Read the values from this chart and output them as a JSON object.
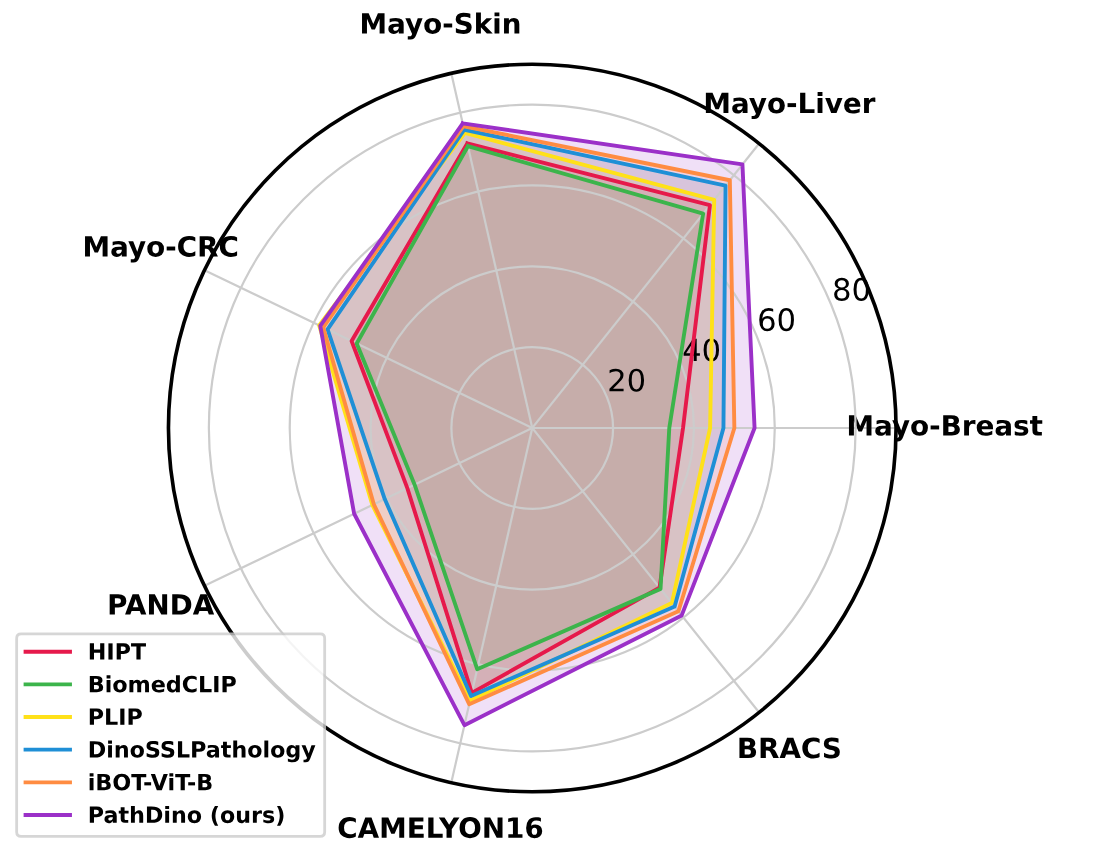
{
  "chart_data": {
    "type": "radar",
    "categories": [
      "Mayo-Skin",
      "Mayo-Liver",
      "Mayo-Breast",
      "BRACS",
      "CAMELYON16",
      "PANDA",
      "Mayo-CRC"
    ],
    "ylim": [
      0,
      90
    ],
    "yticks": [
      20,
      40,
      60,
      80
    ],
    "grid": true,
    "legend": "bottom left",
    "series": [
      {
        "name": "HIPT",
        "color": "#e6194b",
        "values": [
          72.2,
          70.5,
          37.3,
          50.5,
          67.2,
          34.3,
          49.6
        ]
      },
      {
        "name": "BiomedCLIP",
        "color": "#3cb44b",
        "values": [
          71.5,
          67.8,
          33.9,
          50.9,
          61.2,
          32.3,
          48.2
        ]
      },
      {
        "name": "PLIP",
        "color": "#ffe119",
        "values": [
          74.9,
          72.2,
          44.0,
          55.4,
          69.2,
          43.9,
          58.5
        ]
      },
      {
        "name": "DinoSSLPathology",
        "color": "#1f8fd6",
        "values": [
          75.7,
          76.7,
          47.3,
          56.5,
          68.0,
          40.5,
          56.2
        ]
      },
      {
        "name": "iBOT-ViT-B",
        "color": "#ff8c42",
        "values": [
          76.6,
          78.4,
          50.0,
          58.0,
          70.1,
          43.5,
          57.4
        ]
      },
      {
        "name": "PathDino (ours)",
        "color": "#9b30c8",
        "values": [
          77.3,
          83.4,
          55.0,
          59.3,
          75.4,
          48.9,
          58.2
        ]
      }
    ]
  }
}
